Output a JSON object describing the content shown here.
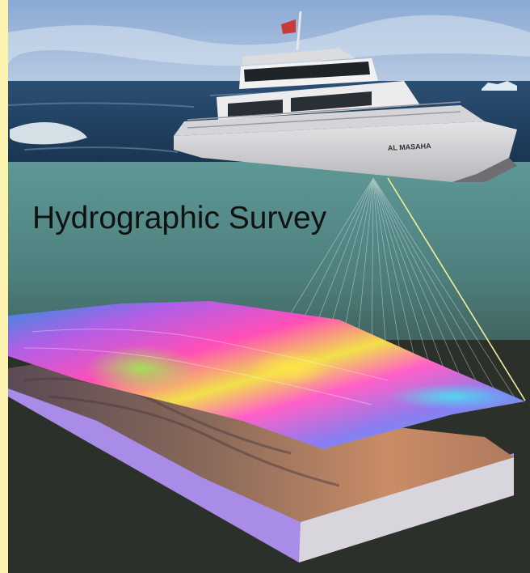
{
  "title": "Hydrographic Survey",
  "vessel_name": "AL MASAHA",
  "colors": {
    "sky_top": "#6f93c4",
    "sea": "#1e3f62",
    "underwater": "#5b8c88",
    "seafloor_bg": "#2c302a",
    "border_left": "#fdf3b0"
  }
}
